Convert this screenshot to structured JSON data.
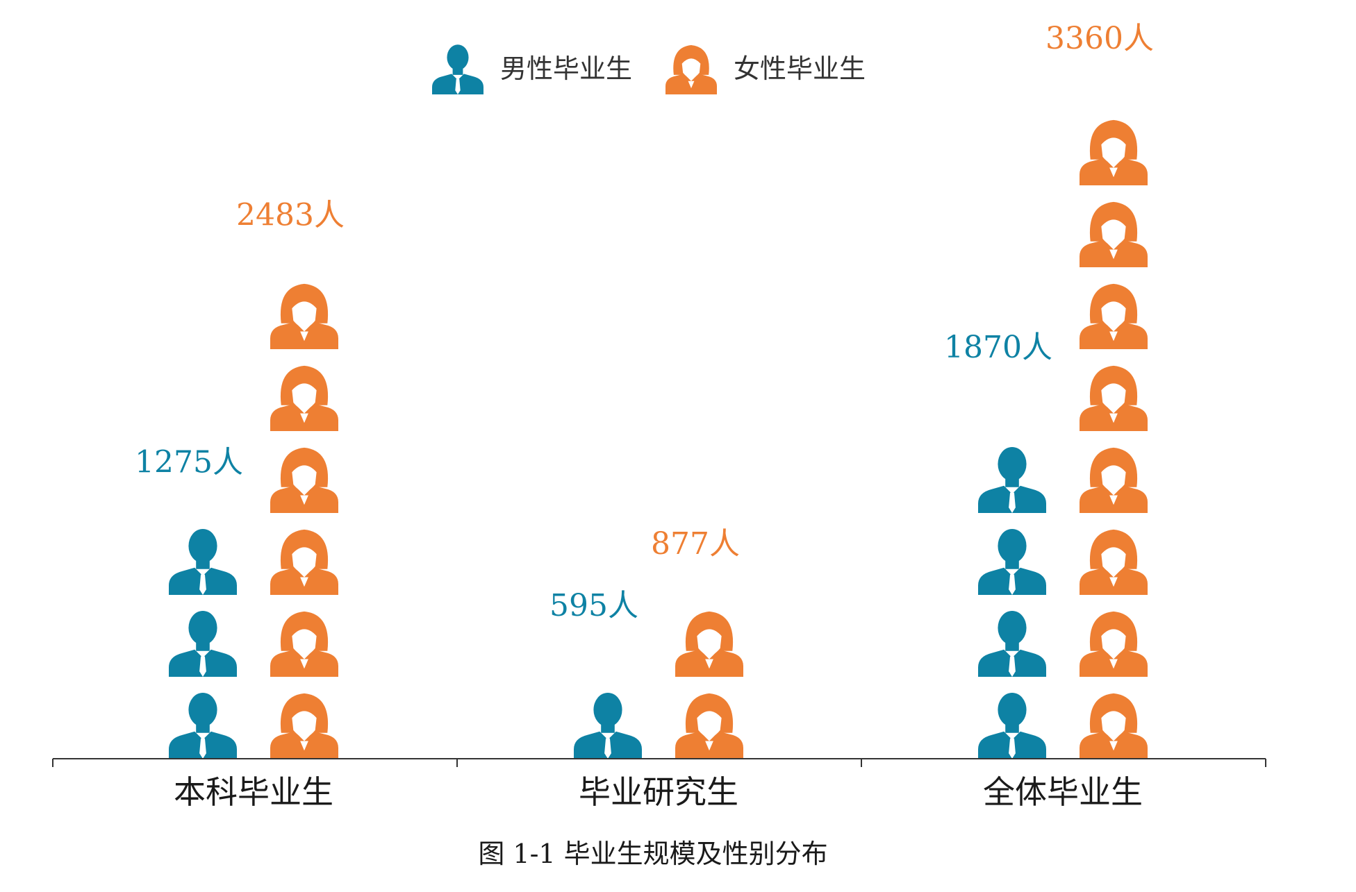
{
  "colors": {
    "male": "#0e82a4",
    "female": "#ee7f33",
    "axis": "#333333"
  },
  "chart_data": {
    "type": "bar",
    "categories": [
      "本科毕业生",
      "毕业研究生",
      "全体毕业生"
    ],
    "series": [
      {
        "name": "男性毕业生",
        "icon": "male-person-icon",
        "values": [
          1275,
          595,
          1870
        ],
        "labels": [
          "1275人",
          "595人",
          "1870人"
        ]
      },
      {
        "name": "女性毕业生",
        "icon": "female-person-icon",
        "values": [
          2483,
          877,
          3360
        ],
        "labels": [
          "2483人",
          "877人",
          "3360人"
        ]
      }
    ],
    "icon_unit": 400,
    "ylim": [
      0,
      3600
    ],
    "legend_position": "top-center"
  },
  "caption": "图 1-1 毕业生规模及性别分布"
}
